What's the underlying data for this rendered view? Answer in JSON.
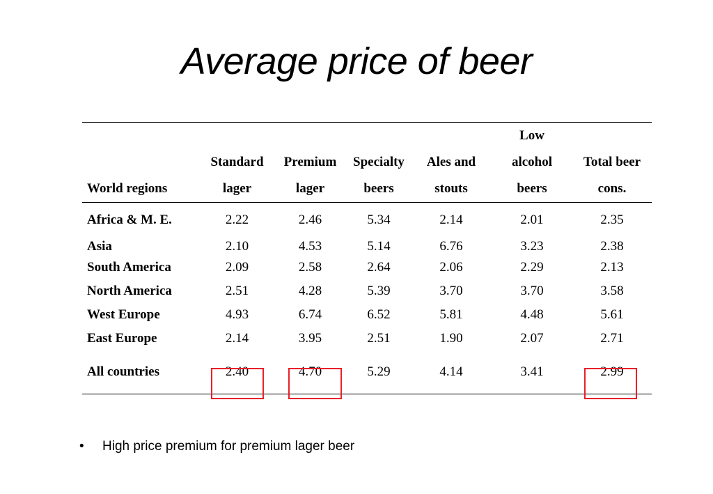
{
  "title": "Average price of beer",
  "table": {
    "headers": [
      {
        "label": "World regions",
        "lines": [
          "World regions"
        ]
      },
      {
        "label": "Standard lager",
        "lines": [
          "Standard",
          "lager"
        ]
      },
      {
        "label": "Premium lager",
        "lines": [
          "Premium",
          "lager"
        ]
      },
      {
        "label": "Specialty beers",
        "lines": [
          "Specialty",
          "beers"
        ]
      },
      {
        "label": "Ales and stouts",
        "lines": [
          "Ales and",
          "stouts"
        ]
      },
      {
        "label": "Low alcohol beers",
        "lines": [
          "Low",
          "alcohol",
          "beers"
        ]
      },
      {
        "label": "Total beer cons.",
        "lines": [
          "Total beer",
          "cons."
        ]
      }
    ],
    "rows": [
      {
        "region": "Africa & M. E.",
        "values": [
          "2.22",
          "2.46",
          "5.34",
          "2.14",
          "2.01",
          "2.35"
        ]
      },
      {
        "region": "Asia",
        "values": [
          "2.10",
          "4.53",
          "5.14",
          "6.76",
          "3.23",
          "2.38"
        ]
      },
      {
        "region": "South America",
        "values": [
          "2.09",
          "2.58",
          "2.64",
          "2.06",
          "2.29",
          "2.13"
        ]
      },
      {
        "region": "North America",
        "values": [
          "2.51",
          "4.28",
          "5.39",
          "3.70",
          "3.70",
          "3.58"
        ]
      },
      {
        "region": "West Europe",
        "values": [
          "4.93",
          "6.74",
          "6.52",
          "5.81",
          "4.48",
          "5.61"
        ]
      },
      {
        "region": "East Europe",
        "values": [
          "2.14",
          "3.95",
          "2.51",
          "1.90",
          "2.07",
          "2.71"
        ]
      },
      {
        "region": "All countries",
        "values": [
          "2.40",
          "4.70",
          "5.29",
          "4.14",
          "3.41",
          "2.99"
        ]
      }
    ],
    "highlighted_columns": [
      "Standard lager",
      "Premium lager",
      "Total beer cons."
    ],
    "highlight_color": "#e8202a"
  },
  "bullet": {
    "marker": "•",
    "text": "High price premium for premium lager beer"
  }
}
